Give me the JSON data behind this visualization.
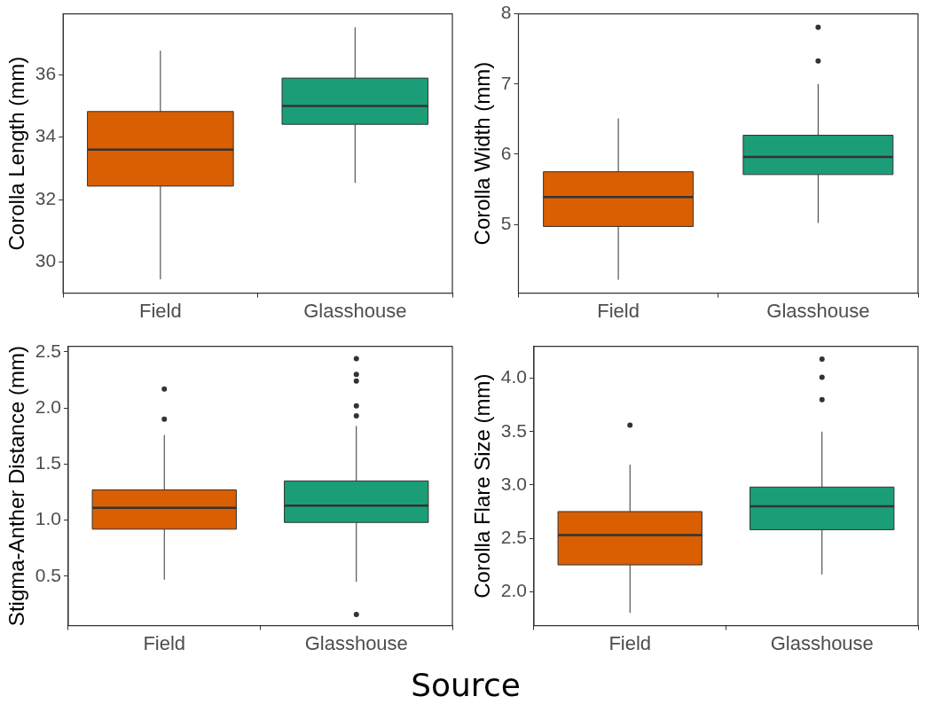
{
  "chart_data": [
    {
      "type": "box",
      "ylabel": "Corolla Length (mm)",
      "categories": [
        "Field",
        "Glasshouse"
      ],
      "colors": [
        "#d95f02",
        "#1b9e77"
      ],
      "ylim": [
        29.0,
        37.95
      ],
      "yticks": [
        30,
        32,
        34,
        36
      ],
      "grid": false,
      "legend": false,
      "boxes": [
        {
          "low": 29.44,
          "q1": 32.43,
          "median": 33.6,
          "q3": 34.82,
          "high": 36.77
        },
        {
          "low": 32.53,
          "q1": 34.41,
          "median": 35.0,
          "q3": 35.89,
          "high": 37.52
        }
      ]
    },
    {
      "type": "box",
      "ylabel": "Corolla Width (mm)",
      "categories": [
        "Field",
        "Glasshouse"
      ],
      "colors": [
        "#d95f02",
        "#1b9e77"
      ],
      "ylim": [
        4.02,
        8
      ],
      "yticks": [
        5,
        6,
        7,
        8
      ],
      "grid": false,
      "legend": false,
      "boxes": [
        {
          "low": 4.21,
          "q1": 4.97,
          "median": 5.39,
          "q3": 5.75,
          "high": 6.51
        },
        {
          "low": 5.02,
          "q1": 5.71,
          "median": 5.96,
          "q3": 6.27,
          "high": 7.0,
          "outliers": [
            7.33,
            7.81
          ]
        }
      ]
    },
    {
      "type": "box",
      "ylabel": "Stigma-Anther Distance (mm)",
      "xlabel": "Source",
      "categories": [
        "Field",
        "Glasshouse"
      ],
      "colors": [
        "#d95f02",
        "#1b9e77"
      ],
      "ylim": [
        0.06,
        2.55
      ],
      "yticks": [
        0.5,
        {
          "value": 1,
          "label": "1.0"
        },
        1.5,
        {
          "value": 2,
          "label": "2.0"
        },
        2.5
      ],
      "grid": false,
      "legend": false,
      "boxes": [
        {
          "low": 0.47,
          "q1": 0.92,
          "median": 1.11,
          "q3": 1.27,
          "high": 1.76,
          "outliers": [
            1.9,
            2.17
          ]
        },
        {
          "low": 0.45,
          "q1": 0.98,
          "median": 1.13,
          "q3": 1.35,
          "high": 1.84,
          "outliers": [
            0.16,
            1.93,
            2.02,
            2.24,
            2.3,
            2.44
          ]
        }
      ]
    },
    {
      "type": "box",
      "ylabel": "Corolla Flare Size (mm)",
      "categories": [
        "Field",
        "Glasshouse"
      ],
      "colors": [
        "#d95f02",
        "#1b9e77"
      ],
      "ylim": [
        1.68,
        4.3
      ],
      "yticks": [
        {
          "value": 2,
          "label": "2.0"
        },
        2.5,
        {
          "value": 3,
          "label": "3.0"
        },
        3.5,
        {
          "value": 4,
          "label": "4.0"
        }
      ],
      "grid": false,
      "legend": false,
      "boxes": [
        {
          "low": 1.8,
          "q1": 2.25,
          "median": 2.53,
          "q3": 2.75,
          "high": 3.19,
          "outliers": [
            3.56
          ]
        },
        {
          "low": 2.16,
          "q1": 2.58,
          "median": 2.8,
          "q3": 2.98,
          "high": 3.5,
          "outliers": [
            3.8,
            4.01,
            4.18
          ]
        }
      ]
    }
  ]
}
